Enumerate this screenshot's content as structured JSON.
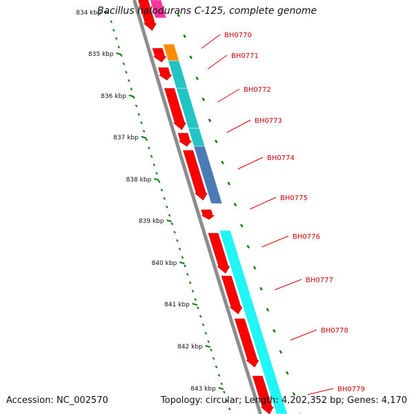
{
  "title": "Bacillus halodurans C-125, complete genome",
  "footer": {
    "accession": "Accession: NC_002570",
    "info": "Topology: circular; Length: 4,202,352 bp; Genes: 4,170"
  },
  "colors": {
    "backbone": "#8c8c8c",
    "cds": "#ff0000",
    "tick": "#0a7a0a",
    "label": "#cc0000",
    "leader": "#dd0000",
    "magenta": "#ff3399",
    "orange": "#ff8c00",
    "teal": "#22c4c4",
    "steel": "#4a7bb5",
    "cyan": "#22f5f5"
  },
  "scale_labels": [
    "834 kbp",
    "835 kbp",
    "836 kbp",
    "837 kbp",
    "838 kbp",
    "839 kbp",
    "840 kbp",
    "841 kbp",
    "842 kbp",
    "843 kbp"
  ],
  "genes": [
    {
      "name": "BH0770",
      "label": "BH0770"
    },
    {
      "name": "BH0771",
      "label": "BH0771"
    },
    {
      "name": "BH0772",
      "label": "BH0772"
    },
    {
      "name": "BH0773",
      "label": "BH0773"
    },
    {
      "name": "BH0774",
      "label": "BH0774"
    },
    {
      "name": "BH0775",
      "label": "BH0775"
    },
    {
      "name": "BH0776",
      "label": "BH0776"
    },
    {
      "name": "BH0777",
      "label": "BH0777"
    },
    {
      "name": "BH0778",
      "label": "BH0778"
    },
    {
      "name": "BH0779",
      "label": "BH0779"
    }
  ]
}
